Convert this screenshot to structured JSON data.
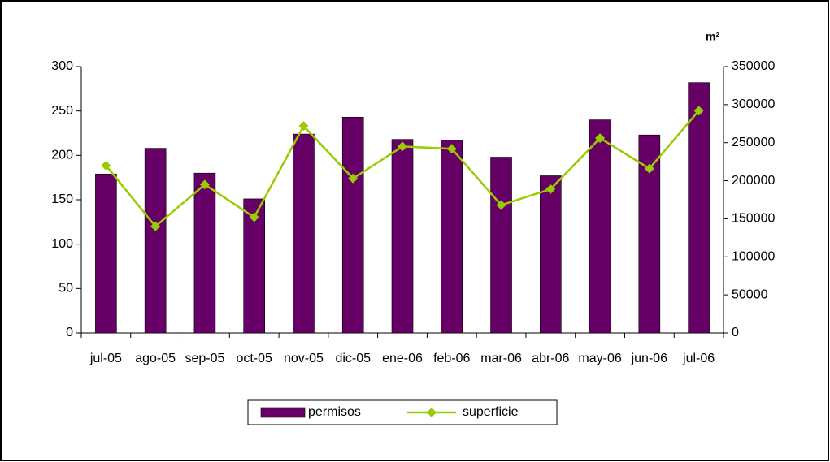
{
  "chart_data": {
    "type": "bar_line",
    "y2_label": "m²",
    "categories": [
      "jul-05",
      "ago-05",
      "sep-05",
      "oct-05",
      "nov-05",
      "dic-05",
      "ene-06",
      "feb-06",
      "mar-06",
      "abr-06",
      "may-06",
      "jun-06",
      "jul-06"
    ],
    "series": [
      {
        "name": "permisos",
        "type": "bar",
        "color": "#660066",
        "values": [
          179,
          208,
          180,
          151,
          224,
          243,
          218,
          217,
          198,
          177,
          240,
          223,
          282
        ]
      },
      {
        "name": "superficie",
        "type": "line",
        "axis": "y2",
        "color": "#99cc00",
        "values": [
          220000,
          140000,
          195000,
          152000,
          272000,
          203000,
          245000,
          242000,
          168000,
          189000,
          256000,
          216000,
          292000
        ]
      }
    ],
    "ylim": [
      0,
      300
    ],
    "yticks": [
      0,
      50,
      100,
      150,
      200,
      250,
      300
    ],
    "y2lim": [
      0,
      350000
    ],
    "y2ticks": [
      0,
      50000,
      100000,
      150000,
      200000,
      250000,
      300000,
      350000
    ],
    "legend": "bottom"
  }
}
